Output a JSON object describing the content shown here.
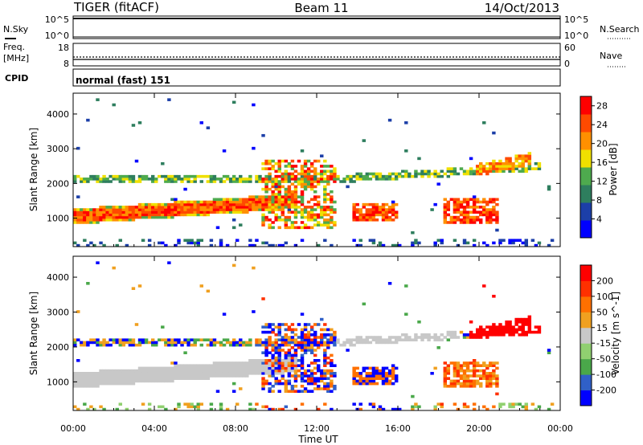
{
  "header": {
    "radar": "TIGER (fitACF)",
    "beam": "Beam 11",
    "date": "14/Oct/2013"
  },
  "strips": {
    "nsky": {
      "label": "N.Sky",
      "ticks_left": [
        "10^5",
        "10^0"
      ],
      "ticks_right": [
        "10^5",
        "10^0"
      ],
      "right_label": "N.Search"
    },
    "freq": {
      "label_line1": "Freq.",
      "label_line2": "[MHz]",
      "ticks_left": [
        "18",
        "8"
      ],
      "ticks_right": [
        "60",
        "0"
      ],
      "right_label": "Nave"
    },
    "cpid": {
      "label": "CPID",
      "value": "normal (fast) 151"
    }
  },
  "chart_data": [
    {
      "type": "heatmap",
      "title": "",
      "ylabel": "Slant Range [km]",
      "xlabel": "Time UT",
      "x_ticks": [
        "00:00",
        "04:00",
        "08:00",
        "12:00",
        "16:00",
        "20:00",
        "00:00"
      ],
      "y_ticks": [
        1000,
        2000,
        3000,
        4000
      ],
      "ylim": [
        180,
        4600
      ],
      "xlim_hours": [
        0,
        24
      ],
      "colorbar": {
        "label": "Power [dB]",
        "ticks": [
          4,
          8,
          12,
          16,
          20,
          24,
          28
        ],
        "range": [
          0,
          30
        ],
        "colors": [
          "#0000ff",
          "#1c3fa8",
          "#2e7e5e",
          "#4eaa4e",
          "#f0e000",
          "#ff9000",
          "#ff4a00",
          "#ff0000"
        ]
      }
    },
    {
      "type": "heatmap",
      "title": "",
      "ylabel": "Slant Range [km]",
      "xlabel": "Time UT",
      "x_ticks": [
        "00:00",
        "04:00",
        "08:00",
        "12:00",
        "16:00",
        "20:00",
        "00:00"
      ],
      "y_ticks": [
        1000,
        2000,
        3000,
        4000
      ],
      "ylim": [
        180,
        4600
      ],
      "xlim_hours": [
        0,
        24
      ],
      "colorbar": {
        "label": "Velocity [m s^-1]",
        "ticks": [
          200,
          100,
          50,
          15,
          -15,
          -50,
          -100,
          -200
        ],
        "range": [
          -250,
          250
        ],
        "colors": [
          "#0000ff",
          "#3060c8",
          "#4aa84a",
          "#90d070",
          "#c8c8c8",
          "#f0a020",
          "#ff7000",
          "#ff3000",
          "#ff0000"
        ]
      }
    }
  ],
  "ground_scatter_color": "#c8c8c8"
}
